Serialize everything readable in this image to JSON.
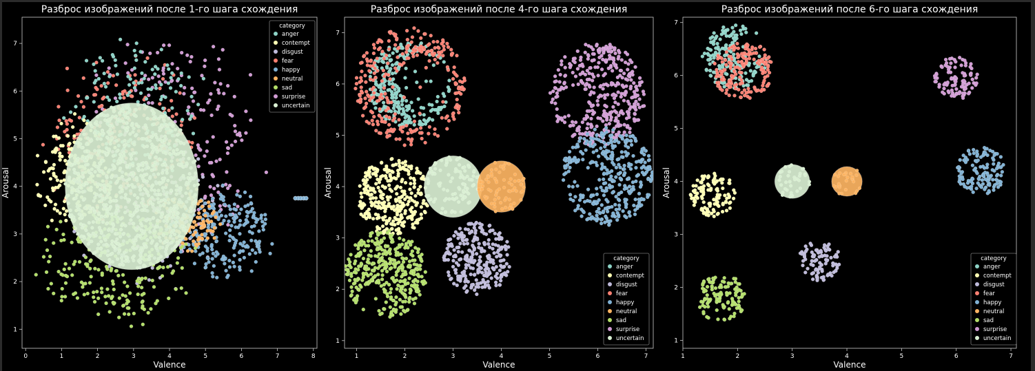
{
  "figure": {
    "background": "#000000",
    "text_color": "#ffffff",
    "axis_color": "#cccccc"
  },
  "legend": {
    "title": "category",
    "entries": [
      {
        "name": "anger",
        "color": "#8dd3c7"
      },
      {
        "name": "contempt",
        "color": "#ffffb3"
      },
      {
        "name": "disgust",
        "color": "#bebada"
      },
      {
        "name": "fear",
        "color": "#fb8072"
      },
      {
        "name": "happy",
        "color": "#80b1d3"
      },
      {
        "name": "neutral",
        "color": "#fdb462"
      },
      {
        "name": "sad",
        "color": "#b3de69"
      },
      {
        "name": "surprise",
        "color": "#d09bd3"
      },
      {
        "name": "uncertain",
        "color": "#d9efd2"
      }
    ]
  },
  "chart_data": [
    {
      "type": "scatter",
      "title": "Разброс изображений после 1-го шага схождения",
      "xlabel": "Valence",
      "ylabel": "Arousal",
      "xlim": [
        -0.1,
        8.1
      ],
      "ylim": [
        0.6,
        7.55
      ],
      "xticks": [
        0,
        1,
        2,
        3,
        4,
        5,
        6,
        7,
        8
      ],
      "yticks": [
        1,
        2,
        3,
        4,
        5,
        6,
        7
      ],
      "legend_position": "top-right",
      "grid": false,
      "series": [
        {
          "name": "surprise",
          "shape": "ellipse",
          "center": [
            4.2,
            4.9
          ],
          "radius": [
            2.4,
            2.3
          ],
          "density": 1.0
        },
        {
          "name": "fear",
          "shape": "ellipse",
          "center": [
            2.7,
            5.0
          ],
          "radius": [
            2.1,
            1.7
          ],
          "density": 0.9
        },
        {
          "name": "anger",
          "shape": "ellipse",
          "center": [
            3.0,
            5.6
          ],
          "radius": [
            1.9,
            1.4
          ],
          "density": 0.6
        },
        {
          "name": "contempt",
          "shape": "ellipse",
          "center": [
            1.5,
            4.2
          ],
          "radius": [
            1.2,
            1.2
          ],
          "density": 0.8
        },
        {
          "name": "disgust",
          "shape": "ellipse",
          "center": [
            3.3,
            3.4
          ],
          "radius": [
            2.1,
            1.6
          ],
          "density": 0.5
        },
        {
          "name": "happy",
          "shape": "ellipse",
          "center": [
            5.5,
            3.0
          ],
          "radius": [
            1.4,
            0.9
          ],
          "density": 0.9
        },
        {
          "name": "neutral",
          "shape": "ellipse",
          "center": [
            4.5,
            3.3
          ],
          "radius": [
            0.9,
            0.7
          ],
          "density": 0.5
        },
        {
          "name": "sad",
          "shape": "ellipse",
          "center": [
            2.5,
            2.4
          ],
          "radius": [
            2.2,
            1.2
          ],
          "density": 1.0
        },
        {
          "name": "uncertain",
          "shape": "disk",
          "center": [
            2.95,
            4.0
          ],
          "radius": [
            1.85,
            1.75
          ],
          "density": 0
        },
        {
          "name": "happy",
          "shape": "points",
          "points": [
            [
              7.5,
              3.75
            ],
            [
              7.58,
              3.75
            ],
            [
              7.65,
              3.75
            ],
            [
              7.73,
              3.75
            ],
            [
              7.8,
              3.75
            ]
          ]
        }
      ]
    },
    {
      "type": "scatter",
      "title": "Разброс изображений после 4-го шага схождения",
      "xlabel": "Valence",
      "ylabel": "Arousal",
      "xlim": [
        0.75,
        7.15
      ],
      "ylim": [
        0.85,
        7.3
      ],
      "xticks": [
        1,
        2,
        3,
        4,
        5,
        6,
        7
      ],
      "yticks": [
        1,
        2,
        3,
        4,
        5,
        6,
        7
      ],
      "legend_position": "bottom-right",
      "grid": false,
      "series": [
        {
          "name": "anger",
          "shape": "crescent",
          "center": [
            2.1,
            6.0
          ],
          "radius": 0.85,
          "inner": 0.65,
          "dir": [
            0.95,
            0.35
          ],
          "density": 1.0
        },
        {
          "name": "fear",
          "shape": "crescent",
          "center": [
            2.1,
            5.95
          ],
          "radius": 1.15,
          "inner": 0.6,
          "dir": [
            0.55,
            -0.3
          ],
          "density": 1.0
        },
        {
          "name": "surprise",
          "shape": "crescent",
          "center": [
            6.0,
            5.8
          ],
          "radius": 1.0,
          "inner": 0.35,
          "dir": [
            -0.8,
            -0.3
          ],
          "density": 1.0
        },
        {
          "name": "happy",
          "shape": "crescent",
          "center": [
            6.2,
            4.2
          ],
          "radius": 0.95,
          "inner": 0.35,
          "dir": [
            -0.75,
            0.0
          ],
          "density": 1.0
        },
        {
          "name": "contempt",
          "shape": "crescent",
          "center": [
            1.75,
            3.8
          ],
          "radius": 0.75,
          "inner": 0.1,
          "dir": [
            1.0,
            0.0
          ],
          "density": 1.0
        },
        {
          "name": "uncertain",
          "shape": "disk",
          "center": [
            3.0,
            4.0
          ],
          "radius": 0.6,
          "density": 1.0
        },
        {
          "name": "neutral",
          "shape": "disk",
          "center": [
            4.0,
            4.0
          ],
          "radius": 0.5,
          "density": 1.0
        },
        {
          "name": "disgust",
          "shape": "crescent",
          "center": [
            3.5,
            2.6
          ],
          "radius": 0.7,
          "inner": 0.1,
          "dir": [
            0.5,
            -0.8
          ],
          "density": 1.0
        },
        {
          "name": "sad",
          "shape": "crescent",
          "center": [
            1.6,
            2.3
          ],
          "radius": 0.85,
          "inner": 0.35,
          "dir": [
            -0.5,
            -0.85
          ],
          "density": 1.0
        }
      ]
    },
    {
      "type": "scatter",
      "title": "Разброс изображений после 6-го шага схождения",
      "xlabel": "Valence",
      "ylabel": "Arousal",
      "xlim": [
        1.0,
        7.1
      ],
      "ylim": [
        0.85,
        7.1
      ],
      "xticks": [
        1,
        2,
        3,
        4,
        5,
        6,
        7
      ],
      "yticks": [
        1,
        2,
        3,
        4,
        5,
        6,
        7
      ],
      "legend_position": "bottom-right",
      "grid": false,
      "series": [
        {
          "name": "anger",
          "shape": "crescent",
          "center": [
            1.95,
            6.35
          ],
          "radius": 0.6,
          "inner": 0.5,
          "dir": [
            0.85,
            0.55
          ],
          "density": 1.0
        },
        {
          "name": "fear",
          "shape": "crescent",
          "center": [
            2.1,
            6.1
          ],
          "radius": 0.55,
          "inner": 0.4,
          "dir": [
            0.55,
            -0.3
          ],
          "density": 1.0
        },
        {
          "name": "surprise",
          "shape": "crescent",
          "center": [
            6.0,
            5.95
          ],
          "radius": 0.4,
          "inner": 0.3,
          "dir": [
            -0.8,
            0.1
          ],
          "density": 1.0
        },
        {
          "name": "happy",
          "shape": "crescent",
          "center": [
            6.45,
            4.2
          ],
          "radius": 0.45,
          "inner": 0.3,
          "dir": [
            -0.8,
            0.0
          ],
          "density": 1.0
        },
        {
          "name": "contempt",
          "shape": "crescent",
          "center": [
            1.55,
            3.75
          ],
          "radius": 0.42,
          "inner": 0.1,
          "dir": [
            1.0,
            0.0
          ],
          "density": 1.0
        },
        {
          "name": "uncertain",
          "shape": "disk",
          "center": [
            3.0,
            4.0
          ],
          "radius": 0.32,
          "density": 1.0
        },
        {
          "name": "neutral",
          "shape": "disk",
          "center": [
            4.0,
            4.0
          ],
          "radius": 0.28,
          "density": 1.0
        },
        {
          "name": "disgust",
          "shape": "crescent",
          "center": [
            3.5,
            2.5
          ],
          "radius": 0.38,
          "inner": 0.05,
          "dir": [
            0.5,
            -0.5
          ],
          "density": 1.0
        },
        {
          "name": "sad",
          "shape": "crescent",
          "center": [
            1.7,
            1.8
          ],
          "radius": 0.45,
          "inner": 0.35,
          "dir": [
            -0.5,
            -0.85
          ],
          "density": 1.0
        }
      ]
    }
  ]
}
